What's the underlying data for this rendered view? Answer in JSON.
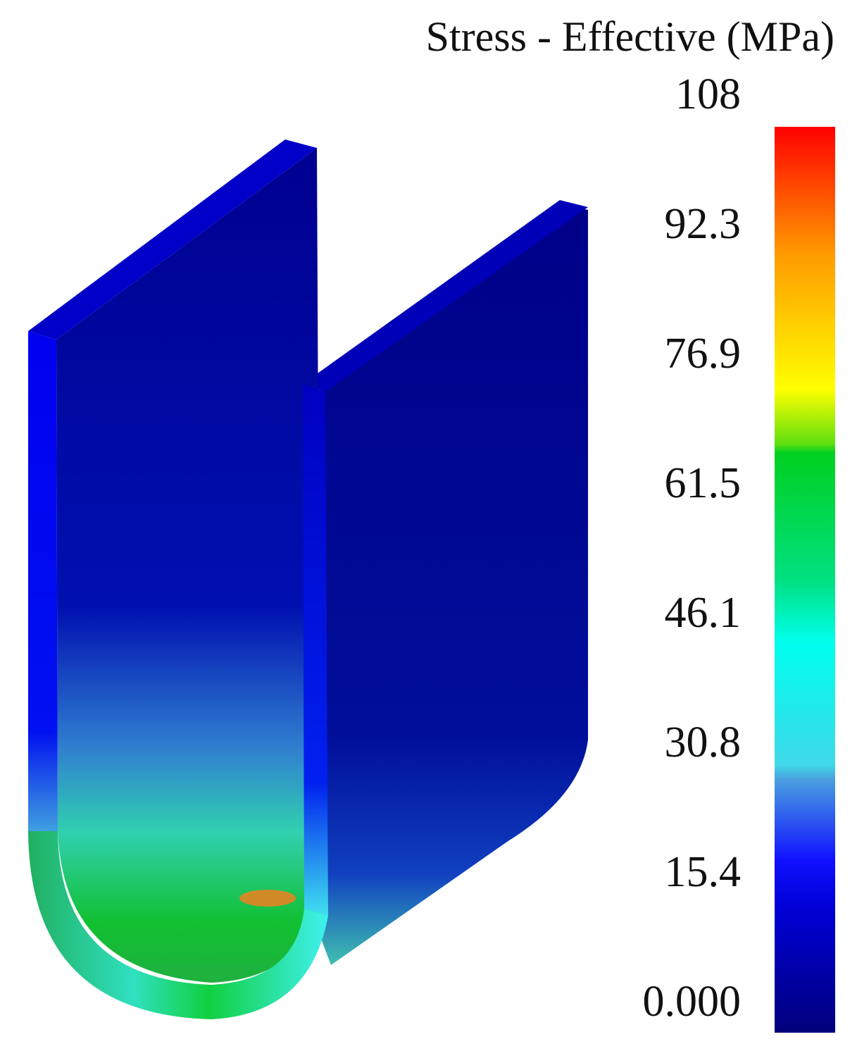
{
  "legend": {
    "title": "Stress - Effective (MPa)",
    "labels": [
      "108",
      "92.3",
      "76.9",
      "61.5",
      "46.1",
      "30.8",
      "15.4",
      "0.000"
    ]
  }
}
